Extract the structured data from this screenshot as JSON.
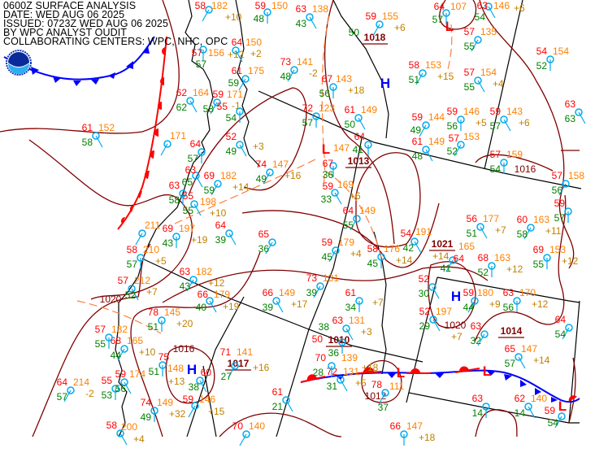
{
  "header": {
    "title": "0600Z SURFACE ANALYSIS",
    "date": "DATE: WED AUG 06 2025",
    "issued": "ISSUED: 0723Z WED AUG 06 2025",
    "analyst": "BY WPC ANALYST OUDIT",
    "centers": "COLLABORATING CENTERS: WPC, NHC, OPC"
  },
  "logo": {
    "text": "NOAA"
  },
  "colors": {
    "isobar": "#800000",
    "cold_front": "#0000ff",
    "warm_front": "#ff0000",
    "station": "#00aaee",
    "temperature": "#ff0000",
    "pressure": "#ff8000",
    "dewpoint": "#008000",
    "tendency": "#c08000",
    "high": "#0000ff",
    "low": "#ff0000"
  },
  "centers": [
    {
      "type": "H"
    },
    {
      "type": "H"
    },
    {
      "type": "H"
    },
    {
      "type": "L"
    },
    {
      "type": "L"
    },
    {
      "type": "L"
    },
    {
      "type": "L"
    },
    {
      "type": "L"
    }
  ],
  "pressure_labels": [
    "1018",
    "1013",
    "1021",
    "1014",
    "1010",
    "1017"
  ],
  "isobar_labels": [
    "1016",
    "1020",
    "1016",
    "1020",
    "1012"
  ],
  "stations": [
    {
      "t": "58",
      "p": "182",
      "d": "",
      "tend": "+10"
    },
    {
      "t": "59",
      "p": "150",
      "d": "48",
      "tend": ""
    },
    {
      "t": "63",
      "p": "138",
      "d": "43",
      "tend": ""
    },
    {
      "t": "59",
      "p": "155",
      "d": "50",
      "tend": "+6"
    },
    {
      "t": "64",
      "p": "107",
      "d": "57",
      "tend": ""
    },
    {
      "t": "63",
      "p": "146",
      "d": "54",
      "tend": "+6"
    },
    {
      "t": "57",
      "p": "135",
      "d": "55",
      "tend": ""
    },
    {
      "t": "54",
      "p": "154",
      "d": "52",
      "tend": ""
    },
    {
      "t": "57",
      "p": "154",
      "d": "55",
      "tend": "+4"
    },
    {
      "t": "58",
      "p": "153",
      "d": "51",
      "tend": "+15"
    },
    {
      "t": "57",
      "p": "156",
      "d": "57",
      "tend": "+12"
    },
    {
      "t": "64",
      "p": "150",
      "d": "",
      "tend": "+2"
    },
    {
      "t": "73",
      "p": "141",
      "d": "48",
      "tend": "-2"
    },
    {
      "t": "67",
      "p": "143",
      "d": "56",
      "tend": "+18"
    },
    {
      "t": "62",
      "p": "164",
      "d": "62",
      "tend": ""
    },
    {
      "t": "59",
      "p": "171",
      "d": "58",
      "tend": "-1"
    },
    {
      "t": "72",
      "p": "123",
      "d": "57",
      "tend": ""
    },
    {
      "t": "61",
      "p": "149",
      "d": "50",
      "tend": ""
    },
    {
      "t": "61",
      "p": "175",
      "d": "59",
      "tend": ""
    },
    {
      "t": "55",
      "p": "",
      "d": "54",
      "tend": ""
    },
    {
      "t": "61",
      "p": "152",
      "d": "58",
      "tend": ""
    },
    {
      "t": "",
      "p": "171",
      "d": "",
      "tend": ""
    },
    {
      "t": "64",
      "p": "",
      "d": "57",
      "tend": ""
    },
    {
      "t": "52",
      "p": "",
      "d": "49",
      "tend": "+3"
    },
    {
      "t": "74",
      "p": "147",
      "d": "49",
      "tend": "+16"
    },
    {
      "t": "67",
      "p": "147",
      "d": "36",
      "tend": ""
    },
    {
      "t": "59",
      "p": "169",
      "d": "33",
      "tend": "+6"
    },
    {
      "t": "64",
      "p": "149",
      "d": "55",
      "tend": ""
    },
    {
      "t": "64",
      "p": "",
      "d": "41",
      "tend": ""
    },
    {
      "t": "61",
      "p": "149",
      "d": "48",
      "tend": ""
    },
    {
      "t": "59",
      "p": "144",
      "d": "49",
      "tend": ""
    },
    {
      "t": "59",
      "p": "146",
      "d": "56",
      "tend": "+5"
    },
    {
      "t": "59",
      "p": "143",
      "d": "57",
      "tend": "+6"
    },
    {
      "t": "57",
      "p": "153",
      "d": "52",
      "tend": ""
    },
    {
      "t": "57",
      "p": "159",
      "d": "54",
      "tend": ""
    },
    {
      "t": "63",
      "p": "",
      "d": "63",
      "tend": ""
    },
    {
      "t": "57",
      "p": "158",
      "d": "56",
      "tend": ""
    },
    {
      "t": "59",
      "p": "",
      "d": "57",
      "tend": ""
    },
    {
      "t": "63",
      "p": "",
      "d": "65",
      "tend": ""
    },
    {
      "t": "69",
      "p": "182",
      "d": "59",
      "tend": "+14"
    },
    {
      "t": "63",
      "p": "",
      "d": "58",
      "tend": ""
    },
    {
      "t": "55",
      "p": "198",
      "d": "55",
      "tend": "+10"
    },
    {
      "t": "",
      "p": "211",
      "d": "",
      "tend": ""
    },
    {
      "t": "69",
      "p": "197",
      "d": "43",
      "tend": "+19"
    },
    {
      "t": "64",
      "p": "",
      "d": "39",
      "tend": ""
    },
    {
      "t": "65",
      "p": "",
      "d": "36",
      "tend": ""
    },
    {
      "t": "58",
      "p": "210",
      "d": "57",
      "tend": "+5"
    },
    {
      "t": "57",
      "p": "212",
      "d": "52",
      "tend": "+7"
    },
    {
      "t": "63",
      "p": "182",
      "d": "43",
      "tend": "+12"
    },
    {
      "t": "78",
      "p": "145",
      "d": "51",
      "tend": "+20"
    },
    {
      "t": "66",
      "p": "179",
      "d": "40",
      "tend": "+19"
    },
    {
      "t": "68",
      "p": "165",
      "d": "44",
      "tend": "+10"
    },
    {
      "t": "57",
      "p": "182",
      "d": "55",
      "tend": ""
    },
    {
      "t": "66",
      "p": "149",
      "d": "39",
      "tend": "+17"
    },
    {
      "t": "73",
      "p": "131",
      "d": "39",
      "tend": ""
    },
    {
      "t": "61",
      "p": "",
      "d": "34",
      "tend": "+7"
    },
    {
      "t": "63",
      "p": "131",
      "d": "38",
      "tend": "+3"
    },
    {
      "t": "59",
      "p": "179",
      "d": "45",
      "tend": "+4"
    },
    {
      "t": "58",
      "p": "176",
      "d": "45",
      "tend": "+14"
    },
    {
      "t": "54",
      "p": "191",
      "d": "42",
      "tend": "+14"
    },
    {
      "t": "64",
      "p": "165",
      "d": "41",
      "tend": ""
    },
    {
      "t": "68",
      "p": "163",
      "d": "52",
      "tend": "+12"
    },
    {
      "t": "56",
      "p": "177",
      "d": "51",
      "tend": "+7"
    },
    {
      "t": "60",
      "p": "163",
      "d": "58",
      "tend": "+11"
    },
    {
      "t": "69",
      "p": "153",
      "d": "55",
      "tend": "+12"
    },
    {
      "t": "52",
      "p": "",
      "d": "30",
      "tend": ""
    },
    {
      "t": "59",
      "p": "180",
      "d": "44",
      "tend": "+9"
    },
    {
      "t": "63",
      "p": "170",
      "d": "56",
      "tend": "+12"
    },
    {
      "t": "52",
      "p": "197",
      "d": "29",
      "tend": "+7"
    },
    {
      "t": "63",
      "p": "",
      "d": "32",
      "tend": ""
    },
    {
      "t": "50",
      "p": "",
      "d": "36",
      "tend": ""
    },
    {
      "t": "65",
      "p": "147",
      "d": "57",
      "tend": "+14"
    },
    {
      "t": "64",
      "p": "",
      "d": "54",
      "tend": ""
    },
    {
      "t": "63",
      "p": "",
      "d": "14",
      "tend": ""
    },
    {
      "t": "62",
      "p": "140",
      "d": "14",
      "tend": ""
    },
    {
      "t": "59",
      "p": "",
      "d": "54",
      "tend": ""
    },
    {
      "t": "66",
      "p": "147",
      "d": "",
      "tend": "+18"
    },
    {
      "t": "72",
      "p": "131",
      "d": "31",
      "tend": "+5"
    },
    {
      "t": "78",
      "p": "111",
      "d": "37",
      "tend": ""
    },
    {
      "t": "70",
      "p": "139",
      "d": "28",
      "tend": "+18"
    },
    {
      "t": "61",
      "p": "",
      "d": "21",
      "tend": ""
    },
    {
      "t": "71",
      "p": "141",
      "d": "27",
      "tend": "+16"
    },
    {
      "t": "75",
      "p": "148",
      "d": "51",
      "tend": "+13"
    },
    {
      "t": "60",
      "p": "",
      "d": "38",
      "tend": ""
    },
    {
      "t": "59",
      "p": "146",
      "d": "",
      "tend": "+15"
    },
    {
      "t": "74",
      "p": "149",
      "d": "49",
      "tend": "+32"
    },
    {
      "t": "58",
      "p": "200",
      "d": "",
      "tend": "+4"
    },
    {
      "t": "64",
      "p": "214",
      "d": "57",
      "tend": "-2"
    },
    {
      "t": "55",
      "p": "",
      "d": "53",
      "tend": ""
    },
    {
      "t": "59",
      "p": "174",
      "d": "56",
      "tend": ""
    },
    {
      "t": "70",
      "p": "140",
      "d": "",
      "tend": ""
    }
  ]
}
